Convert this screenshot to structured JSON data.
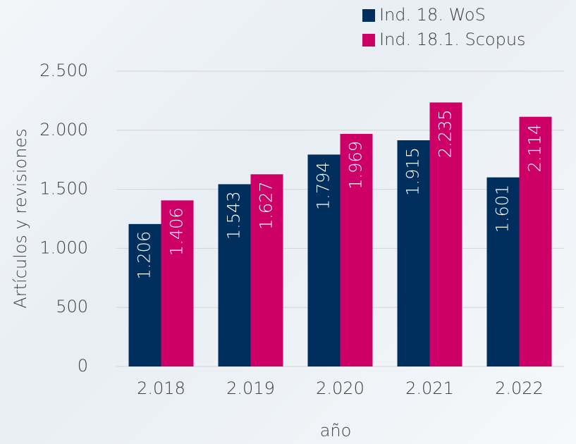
{
  "chart_data": {
    "type": "bar",
    "categories": [
      "2.018",
      "2.019",
      "2.020",
      "2.021",
      "2.022"
    ],
    "series": [
      {
        "name": "Ind. 18. WoS",
        "color": "#002e5d",
        "values": [
          1206,
          1543,
          1794,
          1915,
          1601
        ],
        "value_labels": [
          "1.206",
          "1.543",
          "1.794",
          "1.915",
          "1.601"
        ]
      },
      {
        "name": "Ind. 18.1. Scopus",
        "color": "#cc0066",
        "values": [
          1406,
          1627,
          1969,
          2235,
          2114
        ],
        "value_labels": [
          "1.406",
          "1.627",
          "1.969",
          "2.235",
          "2.114"
        ]
      }
    ],
    "x_label": "año",
    "y_label": "Artículos y revisiones",
    "ylim": [
      0,
      2500
    ],
    "yticks": [
      0,
      500,
      {
        "value": 1000,
        "label": "1.000"
      },
      {
        "value": 1500,
        "label": "1.500"
      },
      {
        "value": 2000,
        "label": "2.000"
      },
      {
        "value": 2500,
        "label": "2.500"
      }
    ],
    "grid": true,
    "legend": "top-right"
  }
}
